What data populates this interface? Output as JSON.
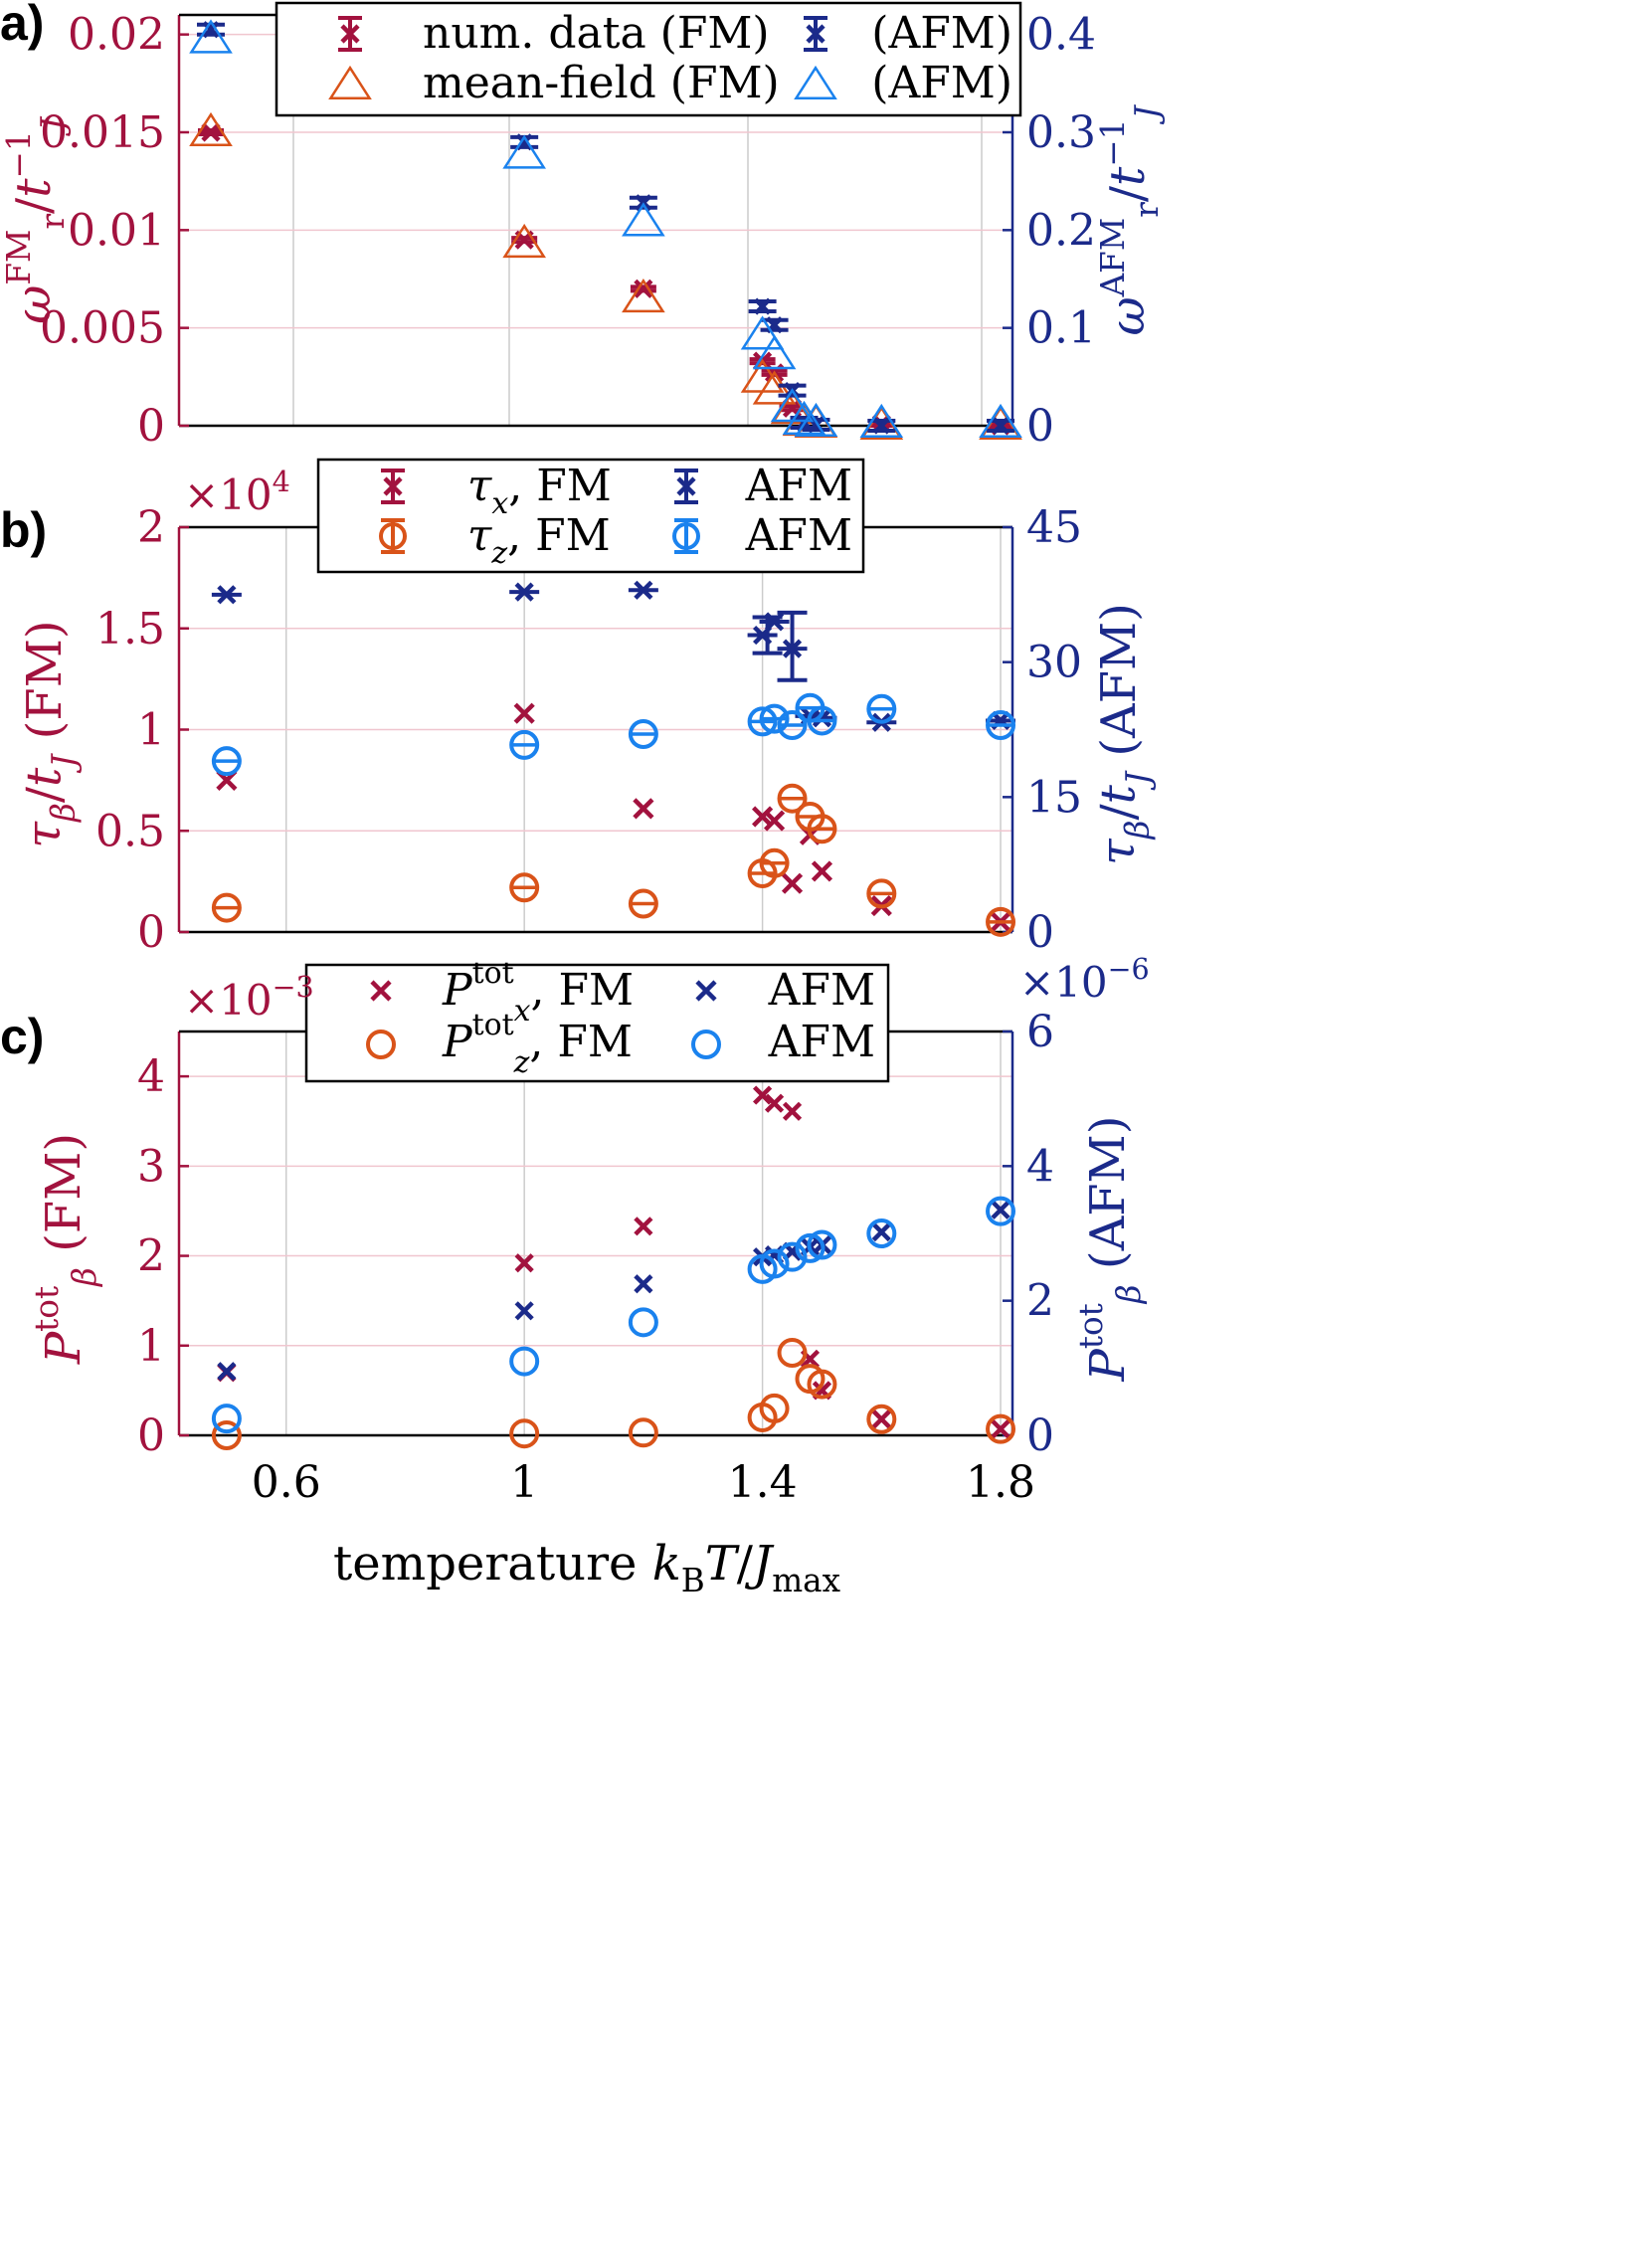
{
  "colors": {
    "fm_cross": "#a2123e",
    "fm_open": "#d95319",
    "afm_cross": "#1b2a8a",
    "afm_open": "#1a82ee",
    "left_axis": "#a2123e",
    "right_axis": "#1b2a8a"
  },
  "xaxis": {
    "label": "temperature kBT/Jmax",
    "ticks": [
      "0.6",
      "1",
      "1.4",
      "1.8"
    ]
  },
  "chart_data": [
    {
      "type": "scatter",
      "panel_label": "a)",
      "xlim": [
        0.42,
        1.82
      ],
      "ylabel_left": "ωr^FM/tJ^-1",
      "ylabel_right": "ωr^AFM/tJ^-1",
      "ylim_left": [
        0,
        0.021
      ],
      "ylim_right": [
        0,
        0.42
      ],
      "yticks_left": [
        "0",
        "0.005",
        "0.01",
        "0.015",
        "0.02"
      ],
      "yticks_right": [
        "0",
        "0.1",
        "0.2",
        "0.3",
        "0.4"
      ],
      "legend": [
        "num. data (FM)",
        "mean-field (FM)",
        "(AFM)",
        "(AFM)"
      ],
      "series": [
        {
          "name": "num. data (FM)",
          "axis": "left",
          "x": [
            0.45,
            1.0,
            1.2,
            1.4,
            1.42,
            1.45,
            1.6,
            1.8
          ],
          "y": [
            0.015,
            0.0095,
            0.007,
            0.0033,
            0.0027,
            0.0009,
            0.0001,
            0.0
          ]
        },
        {
          "name": "mean-field (FM)",
          "axis": "left",
          "x": [
            0.45,
            1.0,
            1.2,
            1.4,
            1.42,
            1.45,
            1.47,
            1.49,
            1.6,
            1.8
          ],
          "y": [
            0.015,
            0.0093,
            0.0065,
            0.0024,
            0.0018,
            0.0008,
            0.0002,
            0.0001,
            0.0,
            0.0
          ]
        },
        {
          "name": "num. data (AFM)",
          "axis": "right",
          "x": [
            0.45,
            1.0,
            1.2,
            1.4,
            1.42,
            1.45,
            1.47,
            1.49,
            1.6,
            1.8
          ],
          "y": [
            0.405,
            0.29,
            0.228,
            0.122,
            0.103,
            0.036,
            0.003,
            0.001,
            0.0,
            0.0
          ]
        },
        {
          "name": "mean-field (AFM)",
          "axis": "right",
          "x": [
            0.45,
            1.0,
            1.2,
            1.4,
            1.42,
            1.45,
            1.47,
            1.49,
            1.6,
            1.8
          ],
          "y": [
            0.395,
            0.277,
            0.208,
            0.092,
            0.072,
            0.018,
            0.005,
            0.003,
            0.002,
            0.002
          ]
        }
      ]
    },
    {
      "type": "scatter",
      "panel_label": "b)",
      "xlim": [
        0.42,
        1.82
      ],
      "ylabel_left": "τβ/tJ (FM)",
      "ylabel_right": "τβ/tJ (AFM)",
      "ylim_left": [
        0,
        2
      ],
      "ylim_right": [
        0,
        45
      ],
      "left_multiplier": "×10^4",
      "yticks_left": [
        "0",
        "0.5",
        "1",
        "1.5",
        "2"
      ],
      "yticks_right": [
        "0",
        "15",
        "30",
        "45"
      ],
      "legend": [
        "τx, FM",
        "τz, FM",
        "AFM",
        "AFM"
      ],
      "series": [
        {
          "name": "τx, FM",
          "axis": "left",
          "x": [
            0.5,
            1.0,
            1.2,
            1.4,
            1.42,
            1.45,
            1.48,
            1.5,
            1.6,
            1.8
          ],
          "y": [
            0.75,
            1.08,
            0.61,
            0.57,
            0.55,
            0.24,
            0.48,
            0.3,
            0.13,
            0.05
          ]
        },
        {
          "name": "τz, FM",
          "axis": "left",
          "x": [
            0.5,
            1.0,
            1.2,
            1.4,
            1.42,
            1.45,
            1.48,
            1.5,
            1.6,
            1.8
          ],
          "y": [
            0.12,
            0.22,
            0.14,
            0.29,
            0.34,
            0.66,
            0.57,
            0.51,
            0.19,
            0.05
          ]
        },
        {
          "name": "τx, AFM",
          "axis": "right",
          "x": [
            0.5,
            1.0,
            1.2,
            1.4,
            1.42,
            1.45,
            1.48,
            1.5,
            1.6,
            1.8
          ],
          "y": [
            37.5,
            37.8,
            38.0,
            33.0,
            34.5,
            31.5,
            24.0,
            23.8,
            23.3,
            23.5
          ]
        },
        {
          "name": "τz, AFM",
          "axis": "right",
          "x": [
            0.5,
            1.0,
            1.2,
            1.4,
            1.42,
            1.45,
            1.48,
            1.5,
            1.6,
            1.8
          ],
          "y": [
            19.0,
            20.8,
            22.0,
            23.4,
            23.7,
            23.0,
            24.9,
            23.5,
            24.8,
            23.0
          ]
        }
      ],
      "error_bars_afm": {
        "x": [
          1.4,
          1.45
        ],
        "low": [
          31.0,
          28.0
        ],
        "high": [
          35.0,
          35.5
        ]
      }
    },
    {
      "type": "scatter",
      "panel_label": "c)",
      "xlim": [
        0.42,
        1.82
      ],
      "ylabel_left": "Pβ^tot (FM)",
      "ylabel_right": "Pβ^tot (AFM)",
      "ylim_left": [
        0,
        4.5
      ],
      "ylim_right": [
        0,
        6
      ],
      "left_multiplier": "×10^-3",
      "right_multiplier": "×10^-6",
      "yticks_left": [
        "0",
        "1",
        "2",
        "3",
        "4"
      ],
      "yticks_right": [
        "0",
        "2",
        "4",
        "6"
      ],
      "legend": [
        "Px^tot, FM",
        "Pz^tot, FM",
        "AFM",
        "AFM"
      ],
      "series": [
        {
          "name": "Px tot, FM",
          "axis": "left",
          "x": [
            0.5,
            1.0,
            1.2,
            1.4,
            1.42,
            1.45,
            1.48,
            1.5,
            1.6,
            1.8
          ],
          "y": [
            0.7,
            1.92,
            2.33,
            3.79,
            3.7,
            3.61,
            0.85,
            0.5,
            0.18,
            0.07
          ]
        },
        {
          "name": "Pz tot, FM",
          "axis": "left",
          "x": [
            0.5,
            1.0,
            1.2,
            1.4,
            1.42,
            1.45,
            1.48,
            1.5,
            1.6,
            1.8
          ],
          "y": [
            0.0,
            0.02,
            0.03,
            0.2,
            0.3,
            0.92,
            0.63,
            0.57,
            0.18,
            0.07
          ]
        },
        {
          "name": "Px tot, AFM",
          "axis": "right",
          "x": [
            0.5,
            1.0,
            1.2,
            1.4,
            1.42,
            1.45,
            1.48,
            1.5,
            1.6,
            1.8
          ],
          "y": [
            0.95,
            1.85,
            2.25,
            2.65,
            2.68,
            2.73,
            2.8,
            2.83,
            3.02,
            3.35
          ]
        },
        {
          "name": "Pz tot, AFM",
          "axis": "right",
          "x": [
            0.5,
            1.0,
            1.2,
            1.4,
            1.42,
            1.45,
            1.48,
            1.5,
            1.6,
            1.8
          ],
          "y": [
            0.25,
            1.1,
            1.68,
            2.47,
            2.55,
            2.65,
            2.78,
            2.83,
            3.0,
            3.33
          ]
        }
      ]
    }
  ]
}
